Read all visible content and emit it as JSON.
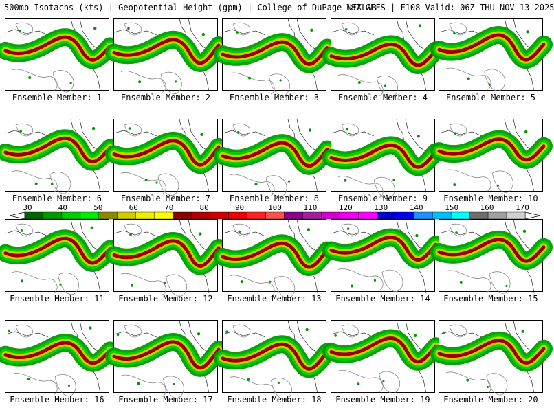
{
  "header": {
    "left": "500mb Isotachs (kts) | Geopotential Height (gpm) | College of DuPage NEXLAB",
    "right": "18Z GEFS | F108 Valid: 06Z THU NOV 13 2025"
  },
  "colorbar": {
    "ticks": [
      "30",
      "40",
      "50",
      "60",
      "70",
      "80",
      "90",
      "100",
      "110",
      "120",
      "130",
      "140",
      "150",
      "160",
      "170"
    ],
    "colors": [
      "#006400",
      "#009a00",
      "#00cd00",
      "#00ee00",
      "#8b8b00",
      "#cdcd00",
      "#eeee00",
      "#ffff00",
      "#8b0000",
      "#b00000",
      "#cd0000",
      "#ee0000",
      "#ff2020",
      "#ff5050",
      "#8b008b",
      "#a020a0",
      "#cd00cd",
      "#ee00ee",
      "#ff00ff",
      "#0000cd",
      "#0000ee",
      "#1e90ff",
      "#00bfff",
      "#00ffff",
      "#6f6f6f",
      "#a0a0a0",
      "#d0d0d0"
    ]
  },
  "members": [
    {
      "label": "Ensemble Member: 1"
    },
    {
      "label": "Ensemble Member: 2"
    },
    {
      "label": "Ensemble Member: 3"
    },
    {
      "label": "Ensemble Member: 4"
    },
    {
      "label": "Ensemble Member: 5"
    },
    {
      "label": "Ensemble Member: 6"
    },
    {
      "label": "Ensemble Member: 7"
    },
    {
      "label": "Ensemble Member: 8"
    },
    {
      "label": "Ensemble Member: 9"
    },
    {
      "label": "Ensemble Member: 10"
    },
    {
      "label": "Ensemble Member: 11"
    },
    {
      "label": "Ensemble Member: 12"
    },
    {
      "label": "Ensemble Member: 13"
    },
    {
      "label": "Ensemble Member: 14"
    },
    {
      "label": "Ensemble Member: 15"
    },
    {
      "label": "Ensemble Member: 16"
    },
    {
      "label": "Ensemble Member: 17"
    },
    {
      "label": "Ensemble Member: 18"
    },
    {
      "label": "Ensemble Member: 19"
    },
    {
      "label": "Ensemble Member: 20"
    }
  ]
}
